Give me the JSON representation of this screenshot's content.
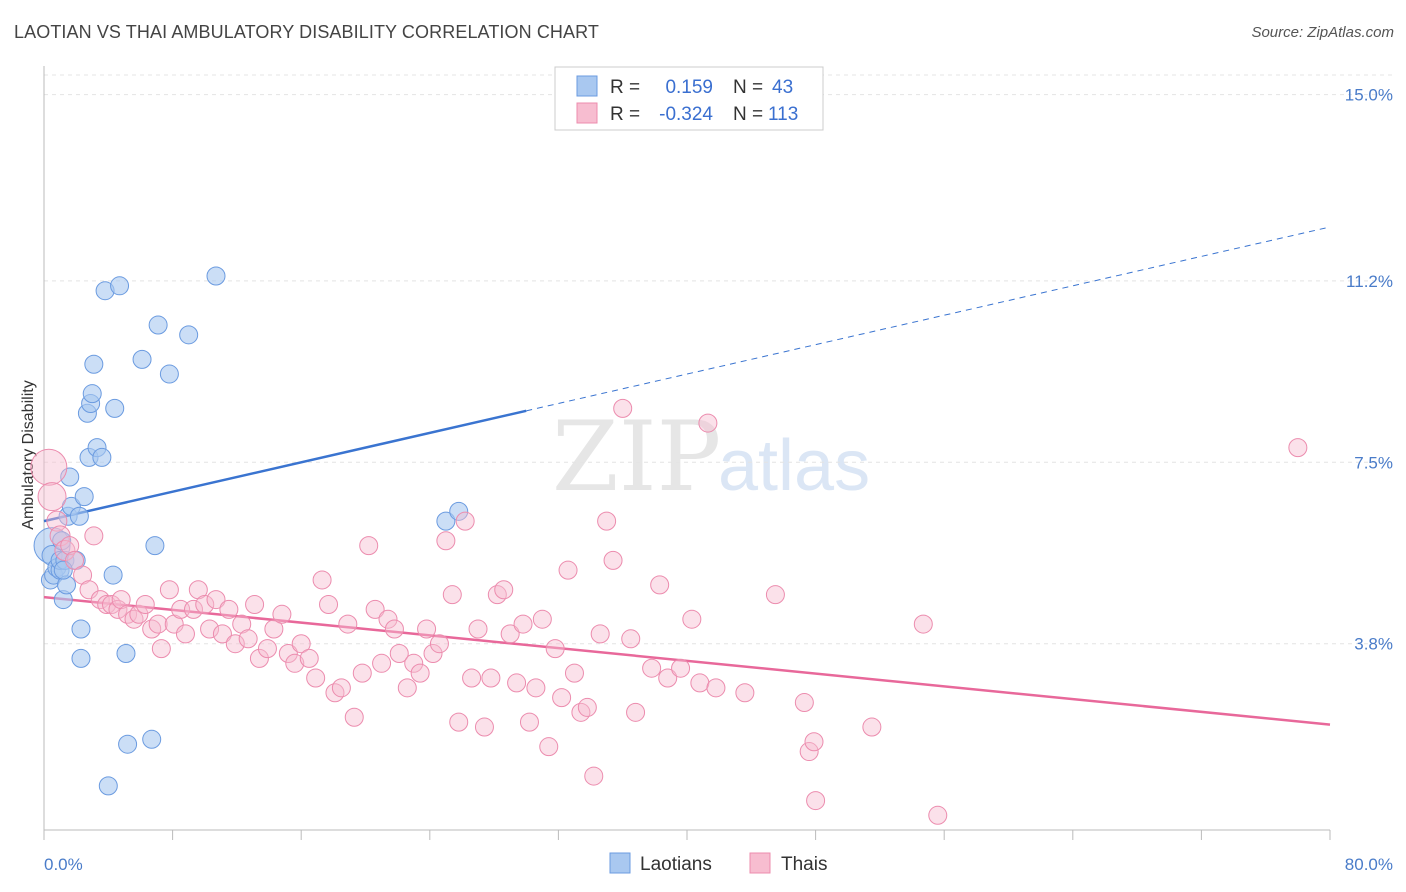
{
  "header": {
    "title": "LAOTIAN VS THAI AMBULATORY DISABILITY CORRELATION CHART",
    "source": "Source: ZipAtlas.com"
  },
  "watermark": {
    "zip": "ZIP",
    "atlas": "atlas"
  },
  "chart_data": {
    "type": "scatter",
    "title": "LAOTIAN VS THAI AMBULATORY DISABILITY CORRELATION CHART",
    "xlabel": "",
    "ylabel": "Ambulatory Disability",
    "xlim": [
      0,
      80
    ],
    "ylim": [
      0,
      15.4
    ],
    "x_tick_labels": [
      "0.0%",
      "80.0%"
    ],
    "y_ticks": [
      3.8,
      7.5,
      11.2,
      15.0
    ],
    "y_tick_labels": [
      "3.8%",
      "7.5%",
      "11.2%",
      "15.0%"
    ],
    "grid": true,
    "legend": {
      "position": "top-center",
      "entries": [
        {
          "r_label": "R =",
          "r_value": "0.159",
          "n_label": "N =",
          "n_value": "43"
        },
        {
          "r_label": "R =",
          "r_value": "-0.324",
          "n_label": "N =",
          "n_value": "113"
        }
      ]
    },
    "series": [
      {
        "name": "Laotians",
        "color": "#6b9be0",
        "fill": "#a9c8f0",
        "trend": {
          "x0": 0,
          "y0": 6.3,
          "x1": 30,
          "y1": 8.55,
          "dashed_to_x": 80,
          "dashed_to_y": 12.3
        },
        "points": [
          [
            0.5,
            5.8,
            18
          ],
          [
            0.5,
            5.6,
            10
          ],
          [
            0.4,
            5.1,
            9
          ],
          [
            0.6,
            5.2,
            9
          ],
          [
            0.8,
            5.35,
            9
          ],
          [
            1.0,
            5.3,
            9
          ],
          [
            1.0,
            5.5,
            9
          ],
          [
            1.1,
            5.9,
            9
          ],
          [
            1.2,
            4.7,
            9
          ],
          [
            1.3,
            5.5,
            9
          ],
          [
            1.4,
            5.0,
            9
          ],
          [
            1.5,
            6.4,
            9
          ],
          [
            1.6,
            7.2,
            9
          ],
          [
            1.7,
            6.6,
            9
          ],
          [
            2.0,
            5.5,
            9
          ],
          [
            2.2,
            6.4,
            9
          ],
          [
            2.3,
            4.1,
            9
          ],
          [
            2.3,
            3.5,
            9
          ],
          [
            2.5,
            6.8,
            9
          ],
          [
            2.7,
            8.5,
            9
          ],
          [
            2.8,
            7.6,
            9
          ],
          [
            2.9,
            8.7,
            9
          ],
          [
            3.0,
            8.9,
            9
          ],
          [
            3.1,
            9.5,
            9
          ],
          [
            3.3,
            7.8,
            9
          ],
          [
            3.6,
            7.6,
            9
          ],
          [
            3.8,
            11.0,
            9
          ],
          [
            4.0,
            0.9,
            9
          ],
          [
            4.3,
            5.2,
            9
          ],
          [
            4.4,
            8.6,
            9
          ],
          [
            4.7,
            11.1,
            9
          ],
          [
            5.1,
            3.6,
            9
          ],
          [
            5.2,
            1.75,
            9
          ],
          [
            6.1,
            9.6,
            9
          ],
          [
            6.7,
            1.85,
            9
          ],
          [
            6.9,
            5.8,
            9
          ],
          [
            7.1,
            10.3,
            9
          ],
          [
            7.8,
            9.3,
            9
          ],
          [
            9.0,
            10.1,
            9
          ],
          [
            10.7,
            11.3,
            9
          ],
          [
            25.0,
            6.3,
            9
          ],
          [
            25.8,
            6.5,
            9
          ],
          [
            1.2,
            5.3,
            9
          ]
        ]
      },
      {
        "name": "Thais",
        "color": "#ec8cae",
        "fill": "#f7bdd0",
        "trend": {
          "x0": 0,
          "y0": 4.75,
          "x1": 80,
          "y1": 2.15
        },
        "points": [
          [
            0.3,
            7.4,
            18
          ],
          [
            0.5,
            6.8,
            14
          ],
          [
            0.8,
            6.3,
            10
          ],
          [
            1.0,
            6.0,
            10
          ],
          [
            1.3,
            5.7,
            10
          ],
          [
            1.6,
            5.8,
            9
          ],
          [
            1.9,
            5.5,
            9
          ],
          [
            2.4,
            5.2,
            9
          ],
          [
            2.8,
            4.9,
            9
          ],
          [
            3.1,
            6.0,
            9
          ],
          [
            3.5,
            4.7,
            9
          ],
          [
            3.9,
            4.6,
            9
          ],
          [
            4.2,
            4.6,
            9
          ],
          [
            4.6,
            4.5,
            9
          ],
          [
            4.8,
            4.7,
            9
          ],
          [
            5.2,
            4.4,
            9
          ],
          [
            5.6,
            4.3,
            9
          ],
          [
            5.9,
            4.4,
            9
          ],
          [
            6.3,
            4.6,
            9
          ],
          [
            6.7,
            4.1,
            9
          ],
          [
            7.1,
            4.2,
            9
          ],
          [
            7.3,
            3.7,
            9
          ],
          [
            7.8,
            4.9,
            9
          ],
          [
            8.1,
            4.2,
            9
          ],
          [
            8.5,
            4.5,
            9
          ],
          [
            8.8,
            4.0,
            9
          ],
          [
            9.3,
            4.5,
            9
          ],
          [
            9.6,
            4.9,
            9
          ],
          [
            10.0,
            4.6,
            9
          ],
          [
            10.3,
            4.1,
            9
          ],
          [
            10.7,
            4.7,
            9
          ],
          [
            11.1,
            4.0,
            9
          ],
          [
            11.5,
            4.5,
            9
          ],
          [
            11.9,
            3.8,
            9
          ],
          [
            12.3,
            4.2,
            9
          ],
          [
            12.7,
            3.9,
            9
          ],
          [
            13.1,
            4.6,
            9
          ],
          [
            13.4,
            3.5,
            9
          ],
          [
            13.9,
            3.7,
            9
          ],
          [
            14.3,
            4.1,
            9
          ],
          [
            14.8,
            4.4,
            9
          ],
          [
            15.2,
            3.6,
            9
          ],
          [
            15.6,
            3.4,
            9
          ],
          [
            16.0,
            3.8,
            9
          ],
          [
            16.5,
            3.5,
            9
          ],
          [
            16.9,
            3.1,
            9
          ],
          [
            17.3,
            5.1,
            9
          ],
          [
            17.7,
            4.6,
            9
          ],
          [
            18.1,
            2.8,
            9
          ],
          [
            18.5,
            2.9,
            9
          ],
          [
            18.9,
            4.2,
            9
          ],
          [
            19.3,
            2.3,
            9
          ],
          [
            19.8,
            3.2,
            9
          ],
          [
            20.2,
            5.8,
            9
          ],
          [
            20.6,
            4.5,
            9
          ],
          [
            21.0,
            3.4,
            9
          ],
          [
            21.4,
            4.3,
            9
          ],
          [
            21.8,
            4.1,
            9
          ],
          [
            22.1,
            3.6,
            9
          ],
          [
            22.6,
            2.9,
            9
          ],
          [
            23.0,
            3.4,
            9
          ],
          [
            23.4,
            3.2,
            9
          ],
          [
            23.8,
            4.1,
            9
          ],
          [
            24.2,
            3.6,
            9
          ],
          [
            24.6,
            3.8,
            9
          ],
          [
            25.0,
            5.9,
            9
          ],
          [
            25.4,
            4.8,
            9
          ],
          [
            25.8,
            2.2,
            9
          ],
          [
            26.2,
            6.3,
            9
          ],
          [
            26.6,
            3.1,
            9
          ],
          [
            27.0,
            4.1,
            9
          ],
          [
            27.4,
            2.1,
            9
          ],
          [
            27.8,
            3.1,
            9
          ],
          [
            28.2,
            4.8,
            9
          ],
          [
            28.6,
            4.9,
            9
          ],
          [
            29.0,
            4.0,
            9
          ],
          [
            29.4,
            3.0,
            9
          ],
          [
            29.8,
            4.2,
            9
          ],
          [
            30.2,
            2.2,
            9
          ],
          [
            30.6,
            2.9,
            9
          ],
          [
            31.0,
            4.3,
            9
          ],
          [
            31.4,
            1.7,
            9
          ],
          [
            31.8,
            3.7,
            9
          ],
          [
            32.2,
            2.7,
            9
          ],
          [
            32.6,
            5.3,
            9
          ],
          [
            33.0,
            3.2,
            9
          ],
          [
            33.4,
            2.4,
            9
          ],
          [
            33.8,
            2.5,
            9
          ],
          [
            34.2,
            1.1,
            9
          ],
          [
            34.6,
            4.0,
            9
          ],
          [
            35.0,
            6.3,
            9
          ],
          [
            35.4,
            5.5,
            9
          ],
          [
            36.0,
            8.6,
            9
          ],
          [
            36.8,
            2.4,
            9
          ],
          [
            37.8,
            3.3,
            9
          ],
          [
            38.3,
            5.0,
            9
          ],
          [
            38.8,
            3.1,
            9
          ],
          [
            39.6,
            3.3,
            9
          ],
          [
            40.3,
            4.3,
            9
          ],
          [
            40.8,
            3.0,
            9
          ],
          [
            41.3,
            8.3,
            9
          ],
          [
            41.8,
            2.9,
            9
          ],
          [
            43.6,
            2.8,
            9
          ],
          [
            45.5,
            4.8,
            9
          ],
          [
            47.3,
            2.6,
            9
          ],
          [
            47.6,
            1.6,
            9
          ],
          [
            47.9,
            1.8,
            9
          ],
          [
            48.0,
            0.6,
            9
          ],
          [
            51.5,
            2.1,
            9
          ],
          [
            54.7,
            4.2,
            9
          ],
          [
            55.6,
            0.3,
            9
          ],
          [
            78.0,
            7.8,
            9
          ],
          [
            36.5,
            3.9,
            9
          ]
        ]
      }
    ]
  },
  "bottom_legend": {
    "items": [
      {
        "label": "Laotians"
      },
      {
        "label": "Thais"
      }
    ]
  }
}
